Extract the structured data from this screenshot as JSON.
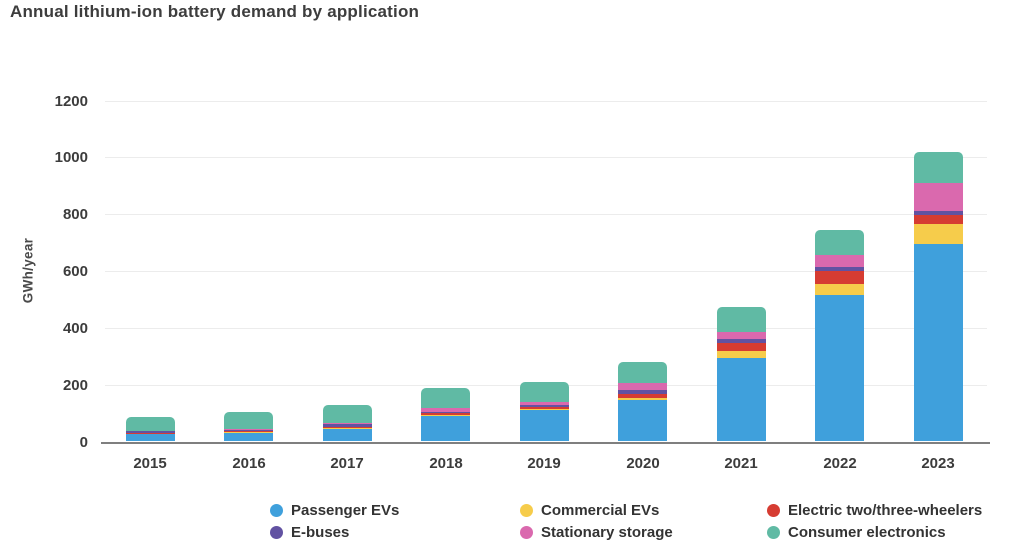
{
  "title": "Annual lithium-ion battery demand by application",
  "chart_data": {
    "type": "bar",
    "stacked": true,
    "title": "Annual lithium-ion battery demand by application",
    "xlabel": "",
    "ylabel": "GWh/year",
    "ylim": [
      0,
      1200
    ],
    "yticks": [
      0,
      200,
      400,
      600,
      800,
      1000,
      1200
    ],
    "grid": true,
    "legend_position": "bottom",
    "categories": [
      "2015",
      "2016",
      "2017",
      "2018",
      "2019",
      "2020",
      "2021",
      "2022",
      "2023"
    ],
    "series": [
      {
        "name": "Passenger EVs",
        "color": "#3fa0dc",
        "values": [
          26,
          30,
          45,
          90,
          110,
          145,
          295,
          515,
          695
        ]
      },
      {
        "name": "Commercial EVs",
        "color": "#f6cc4b",
        "values": [
          2,
          2,
          3,
          3,
          3,
          7,
          22,
          40,
          70
        ]
      },
      {
        "name": "Electric two/three-wheelers",
        "color": "#d63c32",
        "values": [
          3,
          4,
          4,
          6,
          10,
          17,
          31,
          47,
          31
        ]
      },
      {
        "name": "E-buses",
        "color": "#6252a2",
        "values": [
          5,
          5,
          8,
          6,
          6,
          12,
          13,
          14,
          16
        ]
      },
      {
        "name": "Stationary storage",
        "color": "#da69ae",
        "values": [
          2,
          3,
          5,
          12,
          10,
          24,
          26,
          40,
          100
        ]
      },
      {
        "name": "Consumer electronics",
        "color": "#60baa4",
        "values": [
          50,
          60,
          63,
          72,
          70,
          75,
          88,
          90,
          107
        ]
      }
    ],
    "totals": [
      88,
      104,
      128,
      189,
      209,
      280,
      475,
      746,
      1019
    ],
    "legend_rows": [
      [
        "Passenger EVs",
        "Commercial EVs",
        "Electric two/three-wheelers"
      ],
      [
        "E-buses",
        "Stationary storage",
        "Consumer electronics"
      ]
    ]
  },
  "colors": {
    "title_text": "#3d3d3d",
    "axis_text": "#3c3c3c",
    "gridline": "#ececec",
    "baseline": "#7f7f7f",
    "background": "#ffffff"
  }
}
